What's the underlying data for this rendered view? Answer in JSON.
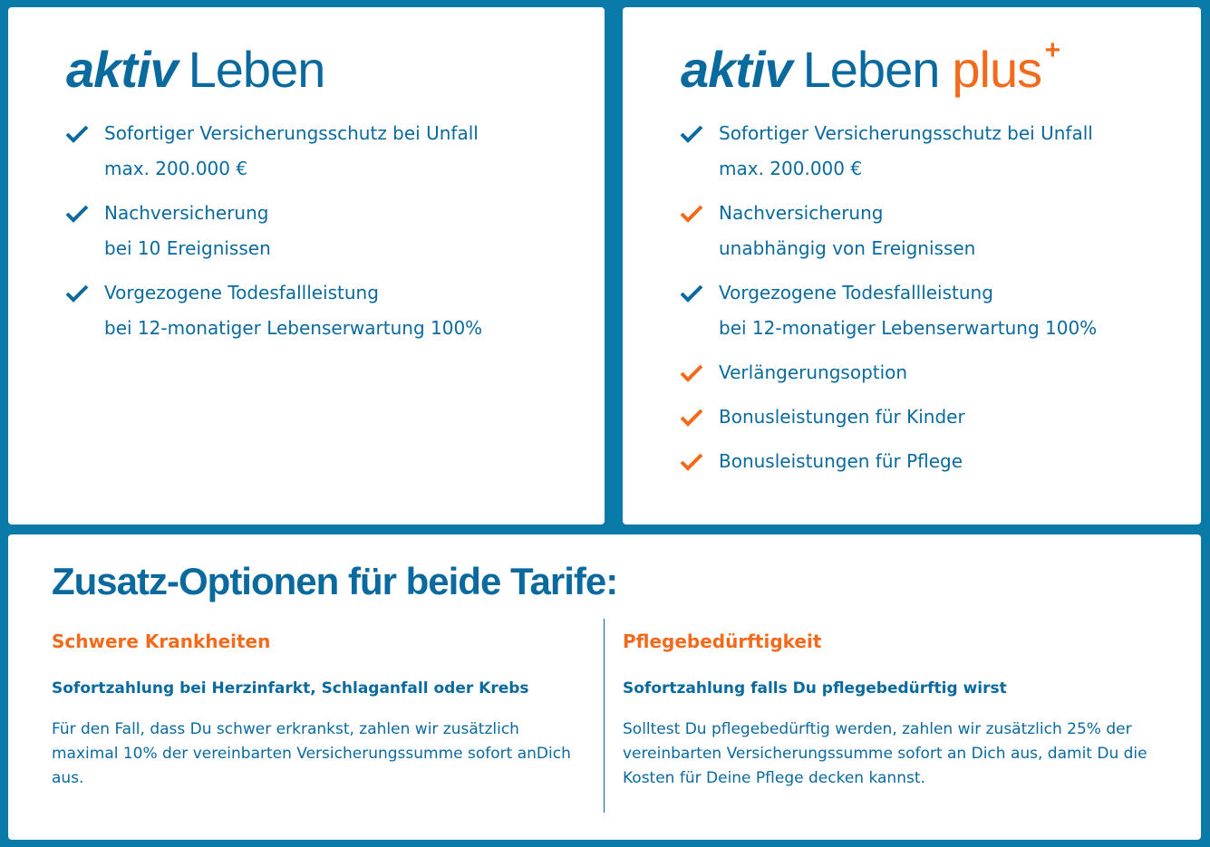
{
  "colors": {
    "blue": "#0a6a9e",
    "orange": "#f26a1b",
    "background": "#0a7aa8"
  },
  "tariff_basic": {
    "logo_aktiv": "aktiv",
    "logo_leben": "Leben",
    "features": [
      {
        "line1": "Sofortiger Versicherungsschutz bei Unfall",
        "line2": "max. 200.000 €",
        "check": "blue"
      },
      {
        "line1": "Nachversicherung",
        "line2": "bei 10 Ereignissen",
        "check": "blue"
      },
      {
        "line1": "Vorgezogene Todesfallleistung",
        "line2": "bei 12-monatiger Lebenserwartung 100%",
        "check": "blue"
      }
    ]
  },
  "tariff_plus": {
    "logo_aktiv": "aktiv",
    "logo_leben": "Leben",
    "logo_plus": "plus",
    "logo_sup": "+",
    "features": [
      {
        "line1": "Sofortiger Versicherungsschutz bei Unfall",
        "line2": "max. 200.000 €",
        "check": "blue"
      },
      {
        "line1": "Nachversicherung",
        "line2": "unabhängig von Ereignissen",
        "check": "orange"
      },
      {
        "line1": "Vorgezogene Todesfallleistung",
        "line2": "bei 12-monatiger Lebenserwartung 100%",
        "check": "blue"
      },
      {
        "line1": "Verlängerungsoption",
        "check": "orange"
      },
      {
        "line1": "Bonusleistungen für Kinder",
        "check": "orange"
      },
      {
        "line1": "Bonusleistungen für Pflege",
        "check": "orange"
      }
    ]
  },
  "options": {
    "title": "Zusatz-Optionen für beide Tarife:",
    "columns": [
      {
        "heading": "Schwere Krankheiten",
        "subheading": "Sofortzahlung bei Herzinfarkt, Schlaganfall oder Krebs",
        "text": "Für den Fall, dass Du schwer erkrankst, zahlen wir zusätzlich maximal 10% der vereinbarten Versicherungssumme sofort anDich aus."
      },
      {
        "heading": "Pflegebedürftigkeit",
        "subheading": "Sofortzahlung falls Du pflegebedürftig wirst",
        "text": "Solltest Du pflegebedürftig werden, zahlen wir zusätzlich 25% der vereinbarten Versicherungssumme sofort an Dich aus, damit Du die Kosten für Deine Pflege decken kannst."
      }
    ]
  }
}
